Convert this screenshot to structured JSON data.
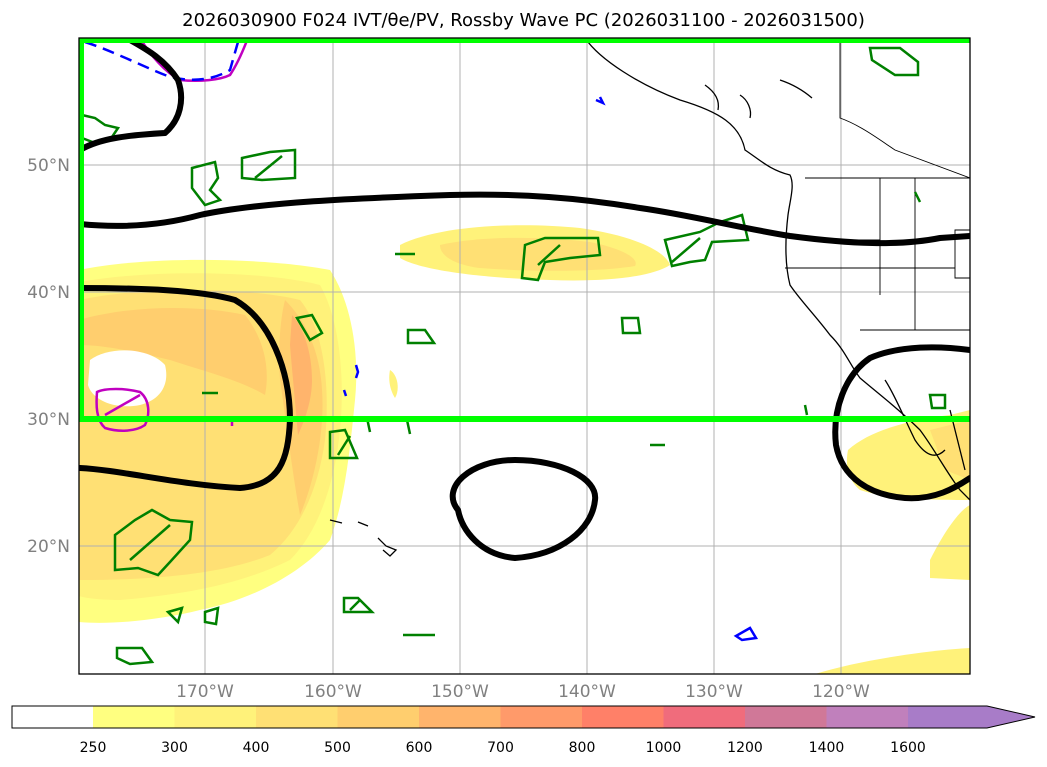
{
  "title": "2026030900 F024 IVT/θe/PV, Rossby Wave PC (2026031100 - 2026031500)",
  "latitude_labels": [
    "50°N",
    "40°N",
    "30°N",
    "20°N"
  ],
  "longitude_labels": [
    "170°W",
    "160°W",
    "150°W",
    "140°W",
    "130°W",
    "120°W"
  ],
  "colorbar": {
    "ticks": [
      "250",
      "300",
      "400",
      "500",
      "600",
      "700",
      "800",
      "1000",
      "1200",
      "1400",
      "1600"
    ],
    "colors": [
      "#ffff80",
      "#fff27a",
      "#ffe074",
      "#ffce6e",
      "#ffb46c",
      "#ff9a6a",
      "#ff8068",
      "#f06c7c",
      "#d07898",
      "#c080bc",
      "#a87cc8"
    ]
  },
  "legend_colors": {
    "ivt_shading": "#ffe074",
    "rossby_contour": "#000000",
    "theta_e": "#008000",
    "pv_positive": "#c000c0",
    "pv_negative": "#0000ff",
    "target_box": "#00ff00"
  }
}
